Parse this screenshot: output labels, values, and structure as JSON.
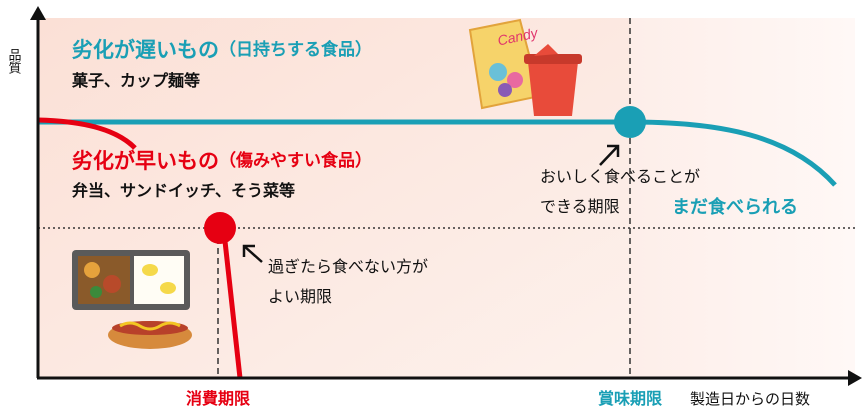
{
  "y_axis_label": "品質",
  "slow": {
    "title": "劣化が遅いもの",
    "note": "（日持ちする食品）",
    "examples": "菓子、カップ麺等"
  },
  "fast": {
    "title": "劣化が早いもの",
    "note": "（傷みやすい食品）",
    "examples": "弁当、サンドイッチ、そう菜等"
  },
  "best_before": {
    "label": "賞味期限",
    "description": [
      "おいしく食べることが",
      "できる期限"
    ],
    "after": "まだ食べられる"
  },
  "use_by": {
    "label": "消費期限",
    "description": [
      "過ぎたら食べない方が",
      "よい期限"
    ]
  },
  "x_axis_label": "製造日からの日数",
  "package_text": "Candy"
}
